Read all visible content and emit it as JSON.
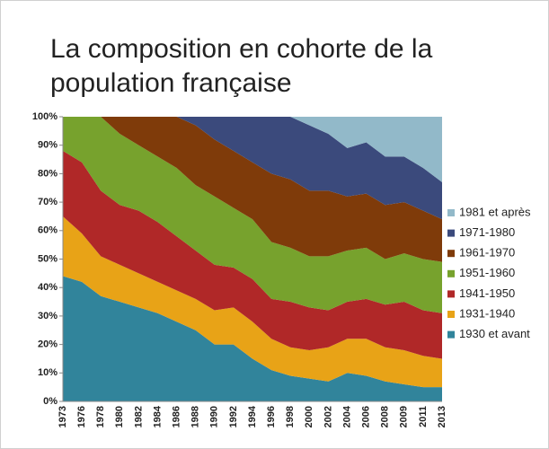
{
  "chart_data": {
    "type": "stacked_area",
    "title": "La composition en cohorte de la population française",
    "categories": [
      "1973",
      "1976",
      "1978",
      "1980",
      "1982",
      "1984",
      "1986",
      "1988",
      "1990",
      "1992",
      "1994",
      "1996",
      "1998",
      "2000",
      "2002",
      "2004",
      "2006",
      "2008",
      "2009",
      "2011",
      "2013"
    ],
    "series": [
      {
        "name": "1930 et avant",
        "color": "#31849b",
        "values": [
          44,
          42,
          37,
          35,
          33,
          31,
          28,
          25,
          20,
          20,
          15,
          11,
          9,
          8,
          7,
          10,
          9,
          7,
          6,
          5,
          5
        ]
      },
      {
        "name": "1931-1940",
        "color": "#e8a317",
        "values": [
          21,
          17,
          14,
          13,
          12,
          11,
          11,
          11,
          12,
          13,
          13,
          11,
          10,
          10,
          12,
          12,
          13,
          12,
          12,
          11,
          10
        ]
      },
      {
        "name": "1941-1950",
        "color": "#b02828",
        "values": [
          23,
          25,
          23,
          21,
          22,
          21,
          19,
          17,
          16,
          14,
          15,
          14,
          16,
          15,
          13,
          13,
          14,
          15,
          17,
          16,
          16
        ]
      },
      {
        "name": "1951-1960",
        "color": "#77a22d",
        "values": [
          12,
          16,
          26,
          25,
          23,
          23,
          24,
          23,
          24,
          21,
          21,
          20,
          19,
          18,
          19,
          18,
          18,
          16,
          17,
          18,
          18
        ]
      },
      {
        "name": "1961-1970",
        "color": "#7f3b0a",
        "values": [
          0,
          0,
          0,
          6,
          10,
          14,
          18,
          21,
          20,
          20,
          20,
          24,
          24,
          23,
          23,
          19,
          19,
          19,
          18,
          17,
          15
        ]
      },
      {
        "name": "1971-1980",
        "color": "#3b4a7c",
        "values": [
          0,
          0,
          0,
          0,
          0,
          0,
          0,
          3,
          8,
          12,
          16,
          20,
          22,
          23,
          20,
          17,
          18,
          17,
          16,
          15,
          13
        ]
      },
      {
        "name": "1981 et après",
        "color": "#92b9c9",
        "values": [
          0,
          0,
          0,
          0,
          0,
          0,
          0,
          0,
          0,
          0,
          0,
          0,
          0,
          3,
          6,
          11,
          9,
          14,
          14,
          18,
          23
        ]
      }
    ],
    "ylim": [
      0,
      100
    ],
    "yticks": [
      {
        "value": 0,
        "label": "0%"
      },
      {
        "value": 10,
        "label": "10%"
      },
      {
        "value": 20,
        "label": "20%"
      },
      {
        "value": 30,
        "label": "30%"
      },
      {
        "value": 40,
        "label": "40%"
      },
      {
        "value": 50,
        "label": "50%"
      },
      {
        "value": 60,
        "label": "60%"
      },
      {
        "value": 70,
        "label": "70%"
      },
      {
        "value": 80,
        "label": "80%"
      },
      {
        "value": 90,
        "label": "90%"
      },
      {
        "value": 100,
        "label": "100%"
      }
    ],
    "legend": "right"
  }
}
